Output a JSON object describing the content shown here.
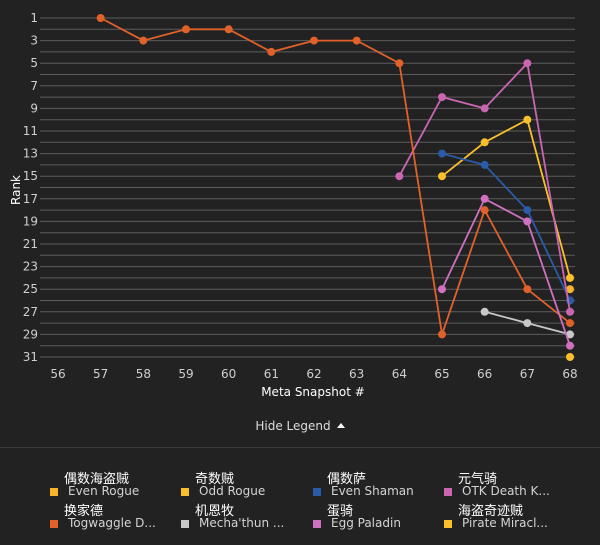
{
  "chart_data": {
    "type": "line",
    "xlabel": "Meta Snapshot #",
    "ylabel": "Rank",
    "x_ticks": [
      56,
      57,
      58,
      59,
      60,
      61,
      62,
      63,
      64,
      65,
      66,
      67,
      68
    ],
    "y_ticks": [
      1,
      3,
      5,
      7,
      9,
      11,
      13,
      15,
      17,
      19,
      21,
      23,
      25,
      27,
      29,
      31
    ],
    "xlim": [
      56,
      68
    ],
    "ylim": [
      0,
      31
    ],
    "y_inverted": true,
    "grid": "horizontal",
    "series": [
      {
        "name": "Even Rogue",
        "chinese": "偶数海盗贼",
        "color": "#f5b42a",
        "points": [
          [
            68,
            25
          ]
        ]
      },
      {
        "name": "Odd Rogue",
        "chinese": "奇数贼",
        "color": "#f9c02c",
        "points": [
          [
            65,
            15
          ],
          [
            66,
            12
          ],
          [
            67,
            10
          ],
          [
            68,
            24
          ]
        ]
      },
      {
        "name": "Even Shaman",
        "chinese": "偶数萨",
        "color": "#2a5ba8",
        "points": [
          [
            65,
            13
          ],
          [
            66,
            14
          ],
          [
            67,
            18
          ],
          [
            68,
            26
          ]
        ]
      },
      {
        "name": "OTK Death K...",
        "chinese": "元气骑",
        "color": "#c866b4",
        "points": [
          [
            64,
            15
          ],
          [
            65,
            8
          ],
          [
            66,
            9
          ],
          [
            67,
            5
          ],
          [
            68,
            27
          ]
        ]
      },
      {
        "name": "Togwaggle D...",
        "chinese": "换家德",
        "color": "#e0622a",
        "points": [
          [
            57,
            1
          ],
          [
            58,
            3
          ],
          [
            59,
            2
          ],
          [
            60,
            2
          ],
          [
            61,
            4
          ],
          [
            62,
            3
          ],
          [
            63,
            3
          ],
          [
            64,
            5
          ],
          [
            65,
            29
          ],
          [
            66,
            18
          ],
          [
            67,
            25
          ],
          [
            68,
            28
          ]
        ]
      },
      {
        "name": "Mecha'thun ...",
        "chinese": "机恩牧",
        "color": "#c8c8c8",
        "points": [
          [
            66,
            27
          ],
          [
            67,
            28
          ],
          [
            68,
            29
          ]
        ]
      },
      {
        "name": "Egg Paladin",
        "chinese": "蛋骑",
        "color": "#d070c0",
        "points": [
          [
            65,
            25
          ],
          [
            66,
            17
          ],
          [
            67,
            19
          ],
          [
            68,
            30
          ]
        ]
      },
      {
        "name": "Pirate Miracl...",
        "chinese": "海盗奇迹贼",
        "color": "#f9c02c",
        "points": [
          [
            68,
            31
          ]
        ]
      }
    ]
  },
  "legend": {
    "toggle_label": "Hide Legend"
  }
}
